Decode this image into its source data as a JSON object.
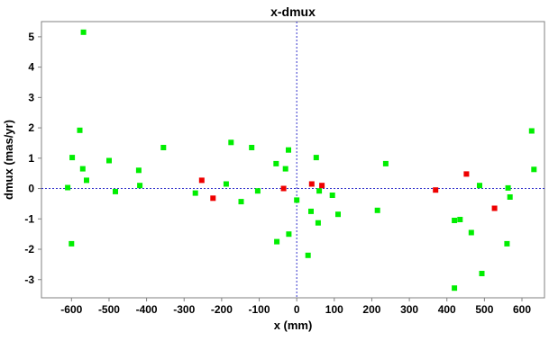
{
  "chart_data": {
    "type": "scatter",
    "title": "x-dmux",
    "xlabel": "x (mm)",
    "ylabel": "dmux (mas/yr)",
    "xlim": [
      -680,
      660
    ],
    "ylim": [
      -3.6,
      5.5
    ],
    "x_ticks": [
      -600,
      -500,
      -400,
      -300,
      -200,
      -100,
      0,
      100,
      200,
      300,
      400,
      500,
      600
    ],
    "y_ticks": [
      -3,
      -2,
      -1,
      0,
      1,
      2,
      3,
      4,
      5
    ],
    "grid": false,
    "reference_lines": {
      "x": 0,
      "y": 0,
      "color": "#3333cc",
      "style": "dashed"
    },
    "legend": "none",
    "series": [
      {
        "color": "#00ee00",
        "points": [
          [
            -568,
            5.15
          ],
          [
            -578,
            1.92
          ],
          [
            -598,
            1.02
          ],
          [
            -570,
            0.65
          ],
          [
            -560,
            0.27
          ],
          [
            -610,
            0.03
          ],
          [
            -600,
            -1.82
          ],
          [
            -500,
            0.92
          ],
          [
            -483,
            -0.1
          ],
          [
            -421,
            0.6
          ],
          [
            -418,
            0.1
          ],
          [
            -355,
            1.35
          ],
          [
            -270,
            -0.15
          ],
          [
            -188,
            0.15
          ],
          [
            -175,
            1.52
          ],
          [
            -148,
            -0.43
          ],
          [
            -120,
            1.35
          ],
          [
            -104,
            -0.08
          ],
          [
            -55,
            0.82
          ],
          [
            -53,
            -1.75
          ],
          [
            -30,
            0.65
          ],
          [
            -22,
            1.27
          ],
          [
            -21,
            -1.5
          ],
          [
            0,
            -0.38
          ],
          [
            30,
            -2.2
          ],
          [
            38,
            -0.75
          ],
          [
            52,
            1.02
          ],
          [
            57,
            -1.13
          ],
          [
            60,
            -0.08
          ],
          [
            95,
            -0.22
          ],
          [
            110,
            -0.85
          ],
          [
            215,
            -0.72
          ],
          [
            237,
            0.82
          ],
          [
            420,
            -3.28
          ],
          [
            420,
            -1.05
          ],
          [
            435,
            -1.02
          ],
          [
            465,
            -1.45
          ],
          [
            487,
            0.1
          ],
          [
            493,
            -2.8
          ],
          [
            560,
            -1.82
          ],
          [
            563,
            0.02
          ],
          [
            568,
            -0.28
          ],
          [
            626,
            1.9
          ],
          [
            632,
            0.63
          ]
        ]
      },
      {
        "color": "#ee0000",
        "points": [
          [
            -253,
            0.27
          ],
          [
            -223,
            -0.32
          ],
          [
            -35,
            0.0
          ],
          [
            40,
            0.15
          ],
          [
            67,
            0.1
          ],
          [
            370,
            -0.05
          ],
          [
            452,
            0.48
          ],
          [
            527,
            -0.65
          ]
        ]
      }
    ]
  }
}
